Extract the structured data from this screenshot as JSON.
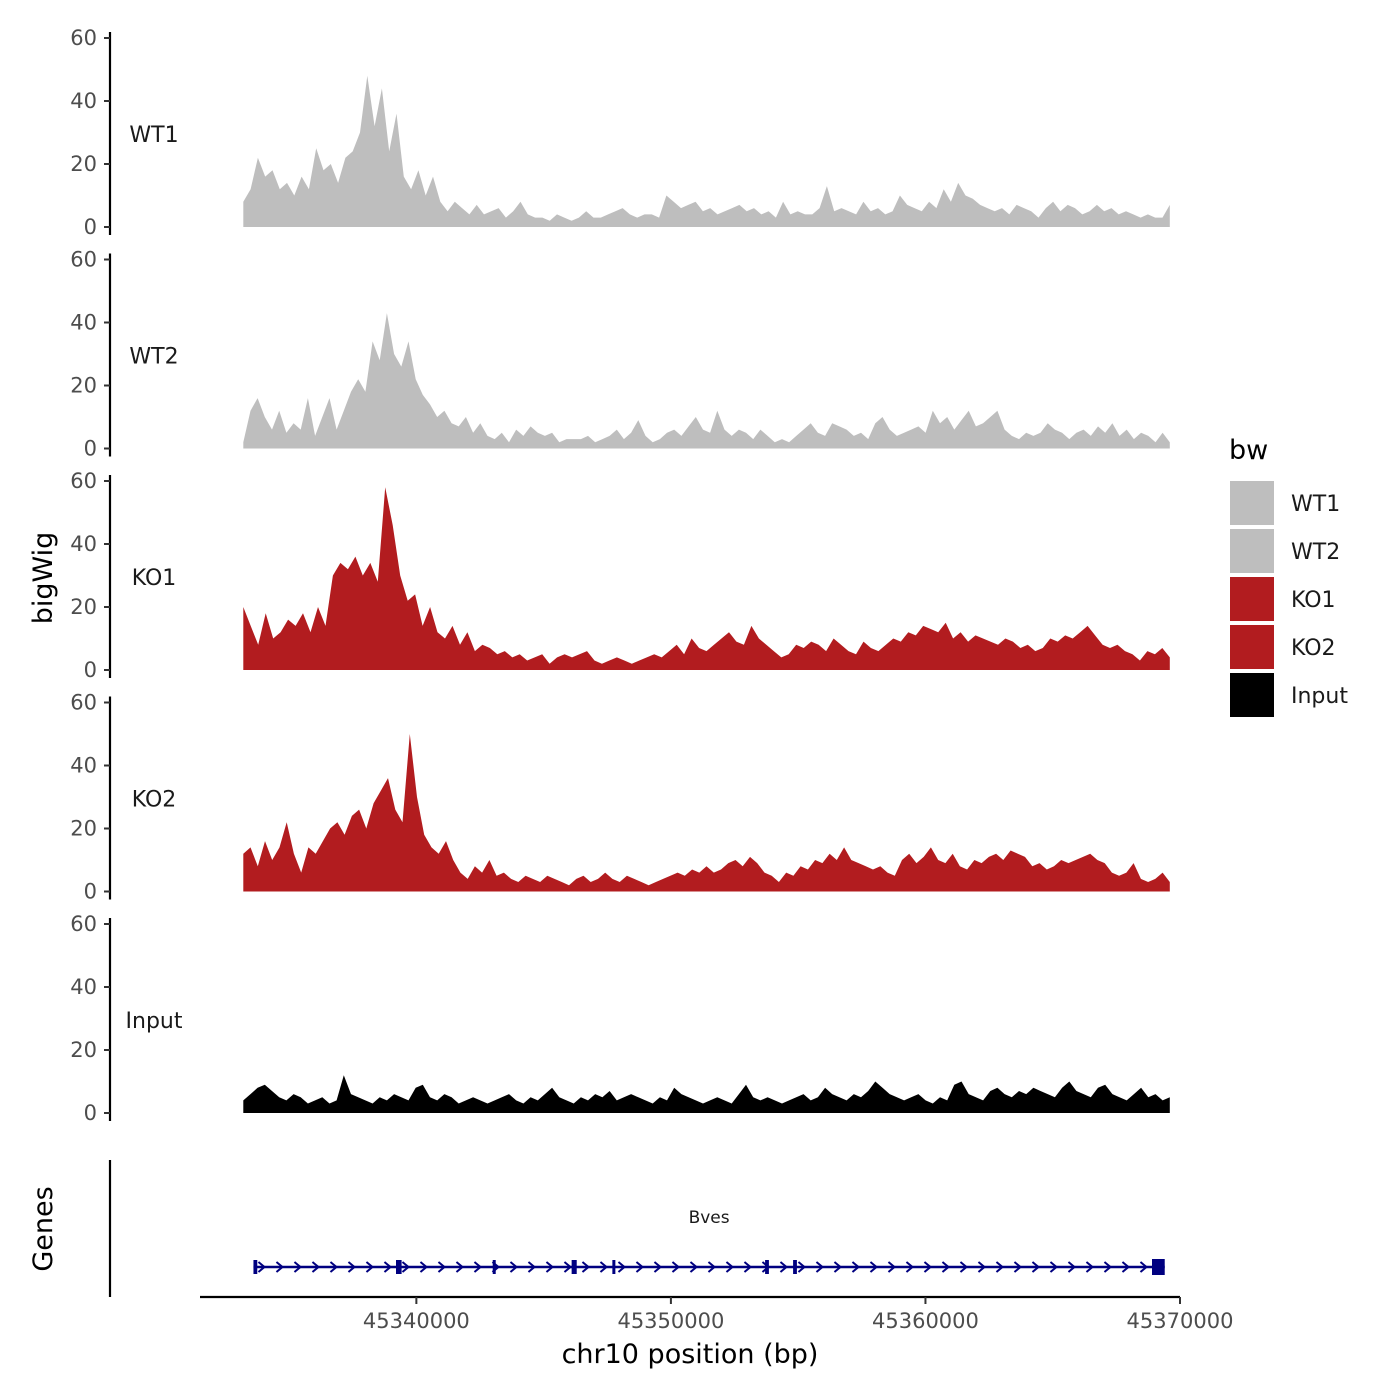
{
  "chart_data": {
    "type": "area",
    "ylabel": "bigWig",
    "xlabel": "chr10 position (bp)",
    "chromosome": "chr10",
    "xlim": [
      45331500,
      45370000
    ],
    "data_range": [
      45333200,
      45369600
    ],
    "ylim": [
      0,
      60
    ],
    "y_ticks": [
      "0",
      "20",
      "40",
      "60"
    ],
    "x_ticks": [
      {
        "value": 45340000,
        "label": "45340000"
      },
      {
        "value": 45350000,
        "label": "45350000"
      },
      {
        "value": 45360000,
        "label": "45360000"
      },
      {
        "value": 45370000,
        "label": "45370000"
      }
    ],
    "legend": {
      "title": "bw",
      "position": "right",
      "entries": [
        {
          "label": "WT1",
          "color": "#bebebe"
        },
        {
          "label": "WT2",
          "color": "#bebebe"
        },
        {
          "label": "KO1",
          "color": "#b21c1f"
        },
        {
          "label": "KO2",
          "color": "#b21c1f"
        },
        {
          "label": "Input",
          "color": "#000000"
        }
      ]
    },
    "series": [
      {
        "name": "WT1",
        "color": "#bebebe",
        "values": [
          8,
          12,
          22,
          16,
          18,
          12,
          14,
          10,
          16,
          12,
          25,
          18,
          20,
          14,
          22,
          24,
          30,
          48,
          32,
          44,
          24,
          36,
          16,
          12,
          18,
          10,
          16,
          8,
          5,
          8,
          6,
          4,
          7,
          4,
          5,
          6,
          3,
          5,
          8,
          4,
          3,
          3,
          2,
          4,
          3,
          2,
          3,
          5,
          3,
          3,
          4,
          5,
          6,
          4,
          3,
          4,
          4,
          3,
          10,
          8,
          6,
          7,
          8,
          5,
          6,
          4,
          5,
          6,
          7,
          5,
          6,
          4,
          5,
          3,
          8,
          4,
          5,
          4,
          4,
          6,
          13,
          5,
          6,
          5,
          4,
          8,
          5,
          6,
          4,
          5,
          10,
          7,
          6,
          5,
          8,
          6,
          12,
          8,
          14,
          10,
          9,
          7,
          6,
          5,
          6,
          4,
          7,
          6,
          5,
          3,
          6,
          8,
          5,
          7,
          6,
          4,
          5,
          7,
          5,
          6,
          4,
          5,
          4,
          3,
          4,
          3,
          3,
          7
        ]
      },
      {
        "name": "WT2",
        "color": "#bebebe",
        "values": [
          2,
          12,
          16,
          10,
          6,
          12,
          5,
          8,
          6,
          16,
          4,
          10,
          16,
          6,
          12,
          18,
          22,
          18,
          34,
          28,
          43,
          30,
          26,
          34,
          22,
          17,
          14,
          10,
          12,
          8,
          7,
          10,
          5,
          8,
          4,
          3,
          5,
          2,
          6,
          4,
          7,
          5,
          4,
          5,
          2,
          3,
          3,
          3,
          4,
          2,
          3,
          4,
          6,
          3,
          5,
          9,
          4,
          2,
          3,
          5,
          6,
          4,
          7,
          10,
          6,
          5,
          12,
          6,
          4,
          6,
          5,
          3,
          6,
          4,
          2,
          3,
          2,
          4,
          6,
          8,
          5,
          4,
          8,
          7,
          6,
          4,
          5,
          3,
          8,
          10,
          6,
          4,
          5,
          6,
          7,
          5,
          12,
          8,
          10,
          6,
          9,
          12,
          7,
          8,
          10,
          12,
          6,
          4,
          3,
          5,
          4,
          5,
          8,
          6,
          5,
          3,
          5,
          6,
          4,
          7,
          5,
          8,
          4,
          6,
          3,
          5,
          4,
          2,
          5,
          2
        ]
      },
      {
        "name": "KO1",
        "color": "#b21c1f",
        "values": [
          20,
          14,
          8,
          18,
          10,
          12,
          16,
          14,
          18,
          12,
          20,
          14,
          30,
          34,
          32,
          36,
          30,
          34,
          28,
          58,
          46,
          30,
          22,
          24,
          14,
          20,
          12,
          10,
          14,
          8,
          12,
          6,
          8,
          7,
          5,
          6,
          4,
          5,
          3,
          4,
          5,
          2,
          4,
          5,
          4,
          5,
          6,
          3,
          2,
          3,
          4,
          3,
          2,
          3,
          4,
          5,
          4,
          6,
          8,
          5,
          10,
          7,
          6,
          8,
          10,
          12,
          9,
          8,
          14,
          10,
          8,
          6,
          4,
          5,
          8,
          7,
          9,
          8,
          6,
          10,
          8,
          6,
          5,
          9,
          7,
          6,
          8,
          10,
          9,
          12,
          11,
          14,
          13,
          12,
          15,
          10,
          12,
          9,
          11,
          10,
          9,
          8,
          10,
          9,
          7,
          8,
          6,
          7,
          10,
          9,
          11,
          10,
          12,
          14,
          11,
          8,
          7,
          8,
          6,
          5,
          3,
          6,
          5,
          7,
          4
        ]
      },
      {
        "name": "KO2",
        "color": "#b21c1f",
        "values": [
          12,
          14,
          8,
          16,
          10,
          14,
          22,
          12,
          6,
          14,
          12,
          16,
          20,
          22,
          18,
          24,
          26,
          20,
          28,
          32,
          36,
          26,
          22,
          50,
          30,
          18,
          14,
          12,
          16,
          10,
          6,
          4,
          8,
          6,
          10,
          5,
          6,
          4,
          3,
          5,
          4,
          3,
          5,
          4,
          3,
          2,
          4,
          5,
          3,
          4,
          6,
          4,
          3,
          5,
          4,
          3,
          2,
          3,
          4,
          5,
          6,
          5,
          7,
          6,
          8,
          6,
          7,
          9,
          10,
          8,
          11,
          9,
          6,
          5,
          3,
          6,
          5,
          8,
          7,
          10,
          9,
          12,
          10,
          14,
          10,
          9,
          8,
          7,
          8,
          6,
          5,
          10,
          12,
          9,
          11,
          14,
          10,
          9,
          12,
          8,
          7,
          10,
          9,
          11,
          12,
          10,
          13,
          12,
          11,
          8,
          9,
          7,
          8,
          10,
          9,
          10,
          11,
          12,
          10,
          9,
          6,
          5,
          6,
          9,
          4,
          3,
          4,
          6,
          3
        ]
      },
      {
        "name": "Input",
        "color": "#000000",
        "values": [
          4,
          6,
          8,
          9,
          7,
          5,
          4,
          6,
          5,
          3,
          4,
          5,
          3,
          4,
          12,
          6,
          5,
          4,
          3,
          5,
          4,
          6,
          5,
          4,
          8,
          9,
          5,
          4,
          6,
          5,
          3,
          4,
          5,
          4,
          3,
          4,
          5,
          6,
          4,
          3,
          5,
          4,
          6,
          8,
          5,
          4,
          3,
          5,
          4,
          6,
          5,
          7,
          4,
          5,
          6,
          5,
          4,
          3,
          5,
          4,
          8,
          6,
          5,
          4,
          3,
          4,
          5,
          4,
          3,
          6,
          9,
          5,
          4,
          5,
          4,
          3,
          4,
          5,
          6,
          4,
          5,
          8,
          6,
          5,
          4,
          6,
          5,
          7,
          10,
          8,
          6,
          5,
          4,
          5,
          6,
          4,
          3,
          5,
          4,
          9,
          10,
          6,
          5,
          4,
          7,
          8,
          6,
          5,
          7,
          6,
          8,
          7,
          6,
          5,
          8,
          10,
          7,
          6,
          5,
          8,
          9,
          6,
          5,
          4,
          6,
          8,
          5,
          6,
          4,
          5
        ]
      }
    ],
    "genes": {
      "title": "Genes",
      "color": "#000080",
      "items": [
        {
          "name": "Bves",
          "start": 45333600,
          "end": 45369400,
          "strand": "+"
        }
      ]
    }
  }
}
